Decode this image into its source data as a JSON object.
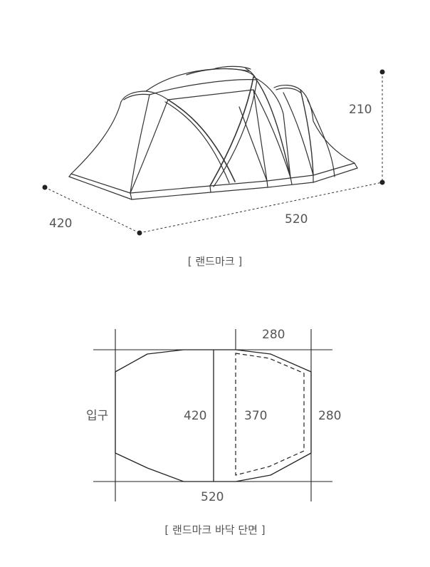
{
  "tent_view": {
    "height_label": "210",
    "width_label": "420",
    "length_label": "520",
    "caption": "[ 랜드마크 ]"
  },
  "floor_plan": {
    "entrance_label": "입구",
    "top_label": "280",
    "inner_width_label": "420",
    "room_width_label": "370",
    "right_label": "280",
    "bottom_label": "520",
    "caption": "[ 랜드마크 바닥 단면 ]"
  }
}
